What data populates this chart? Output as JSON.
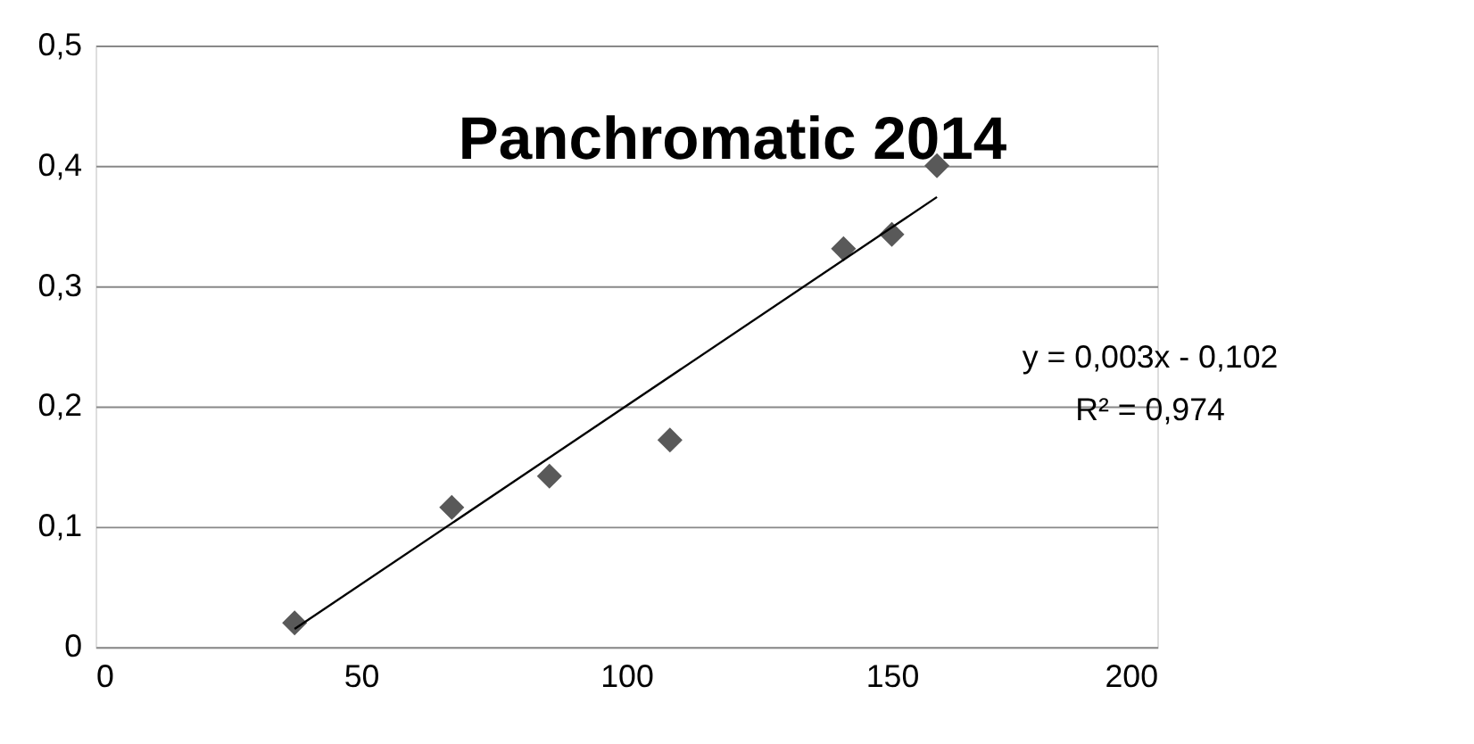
{
  "chart_data": {
    "type": "scatter",
    "title": "Panchromatic 2014",
    "series": [
      {
        "color": "#595959",
        "marker": "diamond",
        "x": [
          37.5,
          67.1,
          85.5,
          108.2,
          140.9,
          150.0,
          158.5
        ],
        "values": [
          0.02,
          0.116,
          0.142,
          0.172,
          0.331,
          0.343,
          0.4
        ]
      },
      {
        "type": "line",
        "color": "#000000",
        "marker": "none",
        "line_style": "solid",
        "x": [
          37.5,
          158.5
        ],
        "values": [
          0.015,
          0.374
        ]
      }
    ],
    "xlim": [
      0,
      200
    ],
    "xticks": [
      0,
      50,
      100,
      150,
      200
    ],
    "ylim": [
      0,
      0.5
    ],
    "yticks": [
      0,
      {
        "value": 0.1,
        "label": "0,1"
      },
      {
        "value": 0.2,
        "label": "0,2"
      },
      {
        "value": 0.3,
        "label": "0,3"
      },
      {
        "value": 0.4,
        "label": "0,4"
      },
      {
        "value": 0.5,
        "label": "0,5"
      }
    ],
    "grid": "y",
    "annotations": [
      "y = 0,003x - 0,102",
      "R² = 0,974"
    ]
  }
}
